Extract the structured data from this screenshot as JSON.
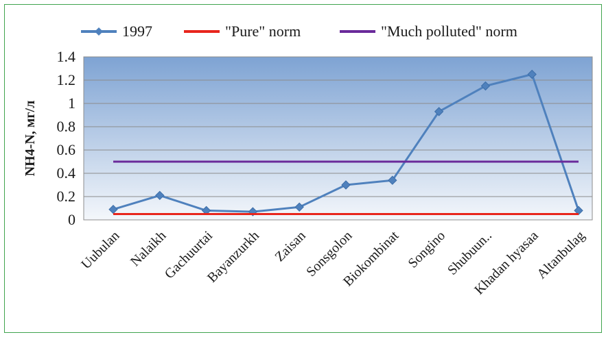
{
  "chart_data": {
    "type": "line",
    "categories": [
      "Uubulan",
      "Nalaikh",
      "Gachuurtai",
      "Bayanzurkh",
      "Zaisan",
      "Sonsgolon",
      "Biokombinat",
      "Songino",
      "Shubuun..",
      "Khadan hyasaa",
      "Altanbulag"
    ],
    "series": [
      {
        "name": "1997",
        "values": [
          0.09,
          0.21,
          0.08,
          0.07,
          0.11,
          0.3,
          0.34,
          0.93,
          1.15,
          1.25,
          0.08
        ],
        "color": "#4f81bd",
        "marker": "diamond"
      },
      {
        "name": "\"Pure\" norm",
        "values": [
          0.05,
          0.05,
          0.05,
          0.05,
          0.05,
          0.05,
          0.05,
          0.05,
          0.05,
          0.05,
          0.05
        ],
        "color": "#e8251c",
        "marker": "none"
      },
      {
        "name": "\"Much polluted\" norm",
        "values": [
          0.5,
          0.5,
          0.5,
          0.5,
          0.5,
          0.5,
          0.5,
          0.5,
          0.5,
          0.5,
          0.5
        ],
        "color": "#6a2a9a",
        "marker": "none"
      }
    ],
    "ylabel": "NH4-N, мг/л",
    "xlabel": "",
    "ylim": [
      0,
      1.4
    ],
    "yticks": [
      "0",
      "0.2",
      "0.4",
      "0.6",
      "0.8",
      "1",
      "1.2",
      "1.4"
    ],
    "grid": true,
    "legend_position": "top",
    "plot_background_top": "#7ea3d3",
    "plot_background_bottom": "#f4f7fb",
    "gridline_color": "#8c8c8c"
  }
}
